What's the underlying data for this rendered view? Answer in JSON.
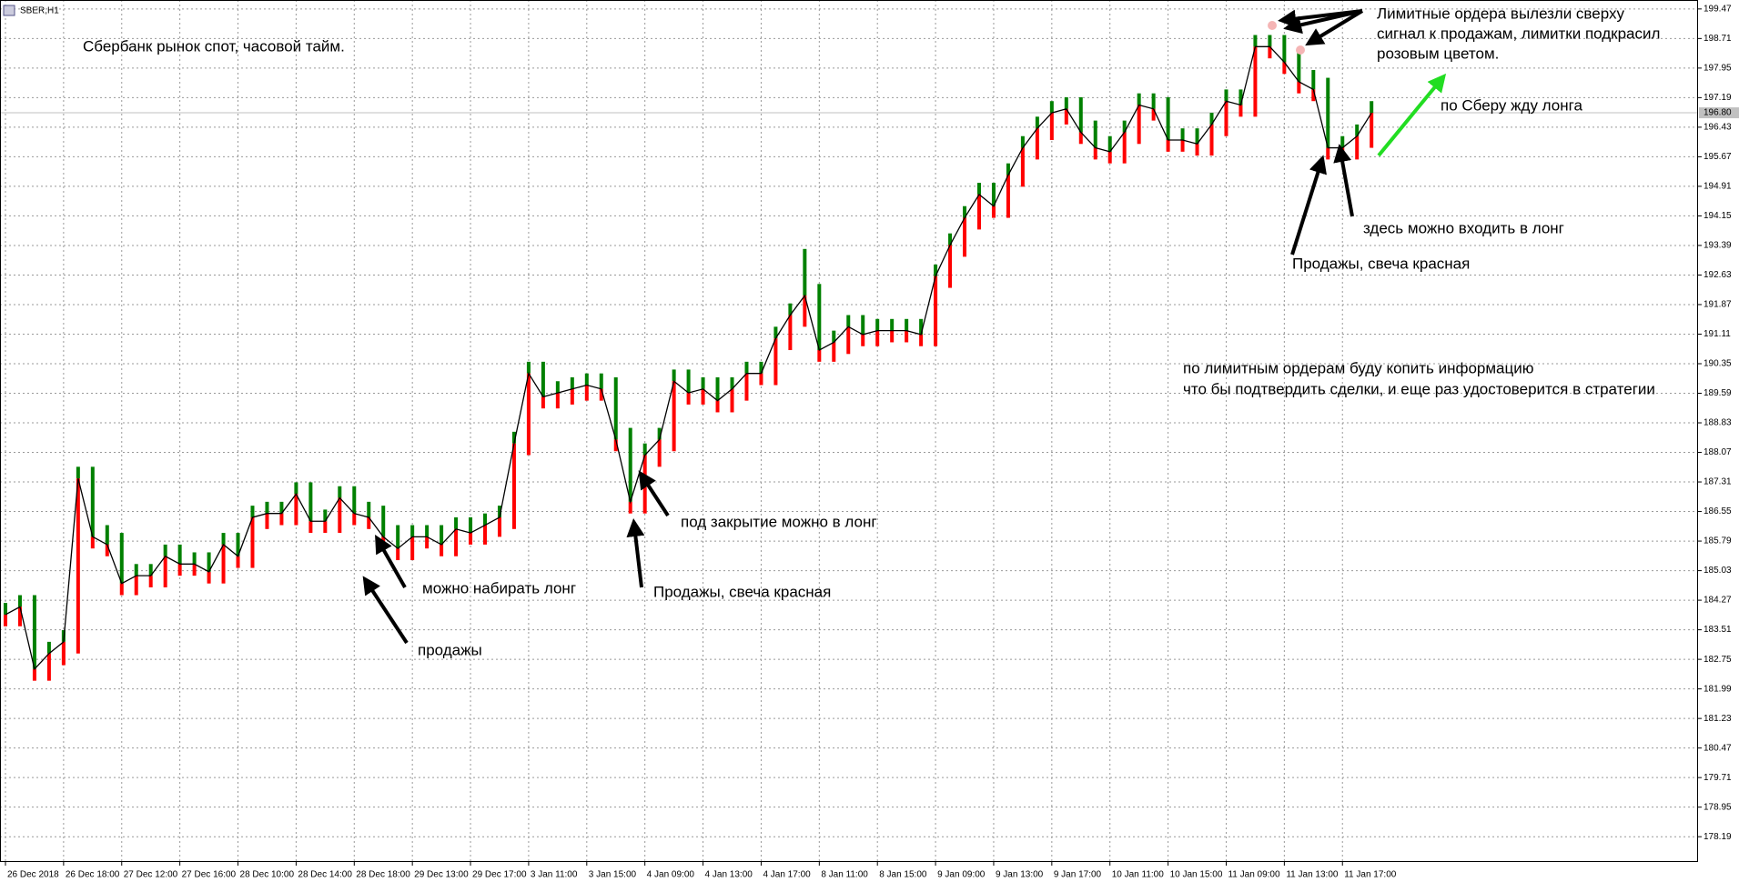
{
  "chart_data": {
    "type": "bar",
    "symbol": "SBER,H1",
    "title": "Сбербанк рынок спот, часовой тайм.",
    "categories": [
      "26 Dec 2018",
      null,
      null,
      null,
      "26 Dec 18:00",
      null,
      null,
      null,
      "27 Dec 12:00",
      null,
      null,
      null,
      "27 Dec 16:00",
      null,
      null,
      null,
      "28 Dec 10:00",
      null,
      null,
      null,
      "28 Dec 14:00",
      null,
      null,
      null,
      "28 Dec 18:00",
      null,
      null,
      null,
      "29 Dec 13:00",
      null,
      null,
      null,
      "29 Dec 17:00",
      null,
      null,
      null,
      "3 Jan 11:00",
      null,
      null,
      null,
      "3 Jan 15:00",
      null,
      null,
      null,
      "4 Jan 09:00",
      null,
      null,
      null,
      "4 Jan 13:00",
      null,
      null,
      null,
      "4 Jan 17:00",
      null,
      null,
      null,
      "8 Jan 11:00",
      null,
      null,
      null,
      "8 Jan 15:00",
      null,
      null,
      null,
      "9 Jan 09:00",
      null,
      null,
      null,
      "9 Jan 13:00",
      null,
      null,
      null,
      "9 Jan 17:00",
      null,
      null,
      null,
      "10 Jan 11:00",
      null,
      null,
      null,
      "10 Jan 15:00",
      null,
      null,
      null,
      "11 Jan 09:00",
      null,
      null,
      null,
      "11 Jan 13:00",
      null,
      null,
      null,
      "11 Jan 17:00",
      null,
      null
    ],
    "values": [
      183.9,
      184.1,
      182.5,
      182.9,
      183.2,
      187.4,
      185.9,
      185.7,
      184.7,
      184.9,
      184.9,
      185.4,
      185.2,
      185.2,
      185.0,
      185.7,
      185.4,
      186.4,
      186.5,
      186.5,
      187.0,
      186.3,
      186.3,
      186.9,
      186.5,
      186.4,
      185.9,
      185.6,
      185.9,
      185.9,
      185.7,
      186.1,
      186.0,
      186.2,
      186.4,
      188.3,
      190.1,
      189.5,
      189.6,
      189.7,
      189.8,
      189.7,
      188.4,
      186.8,
      188.0,
      188.4,
      189.9,
      189.6,
      189.7,
      189.4,
      189.7,
      190.1,
      190.1,
      191.0,
      191.6,
      192.1,
      190.7,
      190.9,
      191.3,
      191.1,
      191.2,
      191.2,
      191.2,
      191.1,
      192.6,
      193.4,
      194.1,
      194.7,
      194.4,
      195.2,
      195.9,
      196.4,
      196.8,
      196.9,
      196.3,
      195.9,
      195.8,
      196.3,
      197.0,
      196.9,
      196.1,
      196.1,
      196.0,
      196.5,
      197.1,
      197.0,
      198.5,
      198.5,
      198.1,
      197.6,
      197.4,
      195.9,
      195.9,
      196.2,
      196.8
    ],
    "highs": [
      184.2,
      184.4,
      184.4,
      183.2,
      183.5,
      187.7,
      187.7,
      186.2,
      186.0,
      185.2,
      185.2,
      185.7,
      185.7,
      185.5,
      185.5,
      186.0,
      186.0,
      186.7,
      186.8,
      186.8,
      187.3,
      187.3,
      186.6,
      187.2,
      187.2,
      186.8,
      186.7,
      186.2,
      186.2,
      186.2,
      186.2,
      186.4,
      186.4,
      186.5,
      186.7,
      188.6,
      190.4,
      190.4,
      189.9,
      190.0,
      190.1,
      190.1,
      190.0,
      188.7,
      188.3,
      188.7,
      190.2,
      190.2,
      190.0,
      190.0,
      190.0,
      190.4,
      190.4,
      191.3,
      191.9,
      193.3,
      192.4,
      191.2,
      191.6,
      191.6,
      191.5,
      191.5,
      191.5,
      191.5,
      192.9,
      193.7,
      194.4,
      195.0,
      195.0,
      195.5,
      196.2,
      196.7,
      197.1,
      197.2,
      197.2,
      196.6,
      196.2,
      196.6,
      197.3,
      197.3,
      197.2,
      196.4,
      196.4,
      196.8,
      197.4,
      197.4,
      198.8,
      198.8,
      198.8,
      198.4,
      197.9,
      197.7,
      196.2,
      196.5,
      197.1
    ],
    "lows": [
      183.6,
      183.6,
      182.2,
      182.2,
      182.6,
      182.9,
      185.6,
      185.4,
      184.4,
      184.4,
      184.6,
      184.6,
      184.9,
      184.9,
      184.7,
      184.7,
      185.1,
      185.1,
      186.1,
      186.2,
      186.2,
      186.0,
      186.0,
      186.0,
      186.2,
      186.1,
      185.6,
      185.3,
      185.3,
      185.6,
      185.4,
      185.4,
      185.7,
      185.7,
      185.9,
      186.1,
      188.0,
      189.2,
      189.2,
      189.3,
      189.4,
      189.4,
      188.1,
      186.5,
      186.5,
      187.7,
      188.1,
      189.3,
      189.3,
      189.1,
      189.1,
      189.4,
      189.8,
      189.8,
      190.7,
      191.3,
      190.4,
      190.4,
      190.6,
      190.8,
      190.8,
      190.9,
      190.9,
      190.8,
      190.8,
      192.3,
      193.1,
      193.8,
      194.1,
      194.1,
      194.9,
      195.6,
      196.1,
      196.5,
      196.0,
      195.6,
      195.5,
      195.5,
      196.0,
      196.6,
      195.8,
      195.8,
      195.7,
      195.7,
      196.2,
      196.7,
      196.7,
      198.2,
      197.8,
      197.3,
      197.1,
      195.6,
      195.6,
      195.6,
      195.9
    ],
    "up_color": "#008000",
    "down_color": "#ff0000",
    "line_color": "#000000",
    "current_price": {
      "value": 196.8,
      "label": "196.80"
    },
    "ylim": [
      177.54,
      199.7
    ],
    "yticks": [
      178.19,
      178.95,
      179.71,
      180.47,
      181.23,
      181.99,
      182.75,
      183.51,
      184.27,
      185.03,
      185.79,
      186.55,
      187.31,
      188.07,
      188.83,
      189.59,
      190.35,
      191.11,
      191.87,
      192.63,
      193.39,
      194.15,
      194.91,
      195.67,
      196.43,
      197.19,
      197.95,
      198.71,
      199.47
    ],
    "grid": true,
    "annotations": [
      "продажы",
      "можно набирать лонг",
      "Продажы, свеча красная",
      "под закрытие можно в лонг",
      "Лимитные ордера вылезли сверху",
      "сигнал к продажам, лимитки подкрасил",
      "розовым цветом.",
      "по Сберу жду лонга",
      "здесь можно входить в лонг",
      "Продажы, свеча красная",
      "по лимитным ордерам буду копить информацию",
      "что бы подтвердить сделки, и еще раз удостоверится в стратегии"
    ]
  }
}
